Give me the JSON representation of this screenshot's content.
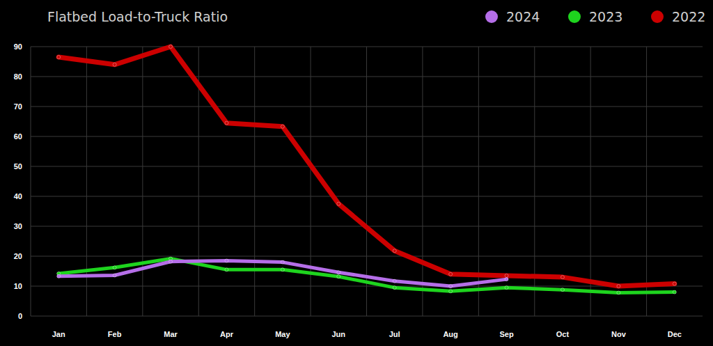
{
  "chart_data": {
    "type": "line",
    "title": "Flatbed Load-to-Truck Ratio",
    "categories": [
      "Jan",
      "Feb",
      "Mar",
      "Apr",
      "May",
      "Jun",
      "Jul",
      "Aug",
      "Sep",
      "Oct",
      "Nov",
      "Dec"
    ],
    "series": [
      {
        "name": "2024",
        "color": "#b56ee8",
        "marker": "circle",
        "values": [
          13.3,
          13.6,
          18.2,
          18.5,
          18.0,
          14.6,
          11.7,
          10.0,
          12.3,
          null,
          null,
          null
        ]
      },
      {
        "name": "2023",
        "color": "#1ed41e",
        "marker": "circle",
        "values": [
          14.2,
          16.2,
          19.2,
          15.5,
          15.5,
          13.2,
          9.5,
          8.3,
          9.5,
          8.8,
          7.8,
          8.0
        ]
      },
      {
        "name": "2022",
        "color": "#cc0000",
        "marker": "circle",
        "values": [
          86.5,
          84.0,
          90.0,
          64.5,
          63.3,
          37.5,
          21.8,
          14.0,
          13.5,
          13.0,
          10.0,
          10.8
        ]
      }
    ],
    "ylim": [
      0,
      90
    ],
    "yticks": [
      0,
      10,
      20,
      30,
      40,
      50,
      60,
      70,
      80,
      90
    ],
    "grid": true,
    "legend": "top-right"
  }
}
